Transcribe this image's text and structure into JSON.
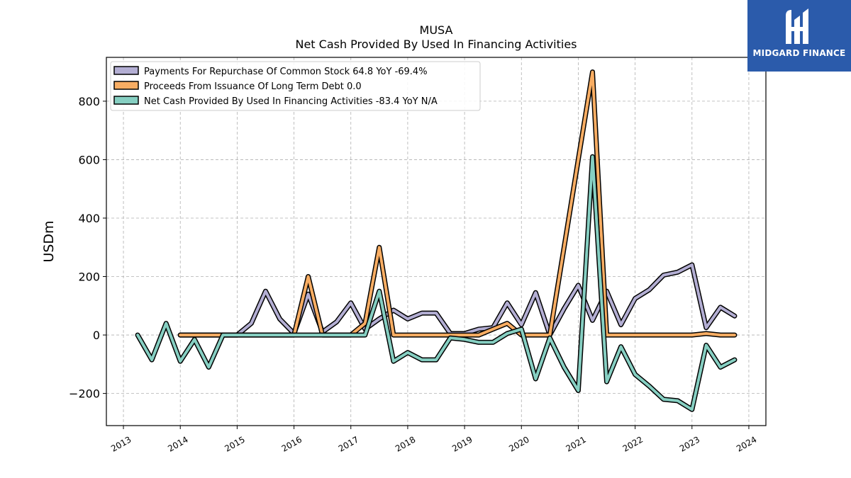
{
  "brand": {
    "name": "MIDGARD FINANCE",
    "bg_color": "#2b5bab"
  },
  "chart_data": {
    "type": "line",
    "title": "MUSA",
    "subtitle": "Net Cash Provided By Used In Financing Activities",
    "xlabel": "",
    "ylabel": "USDm",
    "xlim": [
      2012.7,
      2024.3
    ],
    "ylim": [
      -310,
      950
    ],
    "x_ticks": [
      "2013",
      "2014",
      "2015",
      "2016",
      "2017",
      "2018",
      "2019",
      "2020",
      "2021",
      "2022",
      "2023",
      "2024"
    ],
    "y_ticks": [
      -200,
      0,
      200,
      400,
      600,
      800
    ],
    "y_tick_labels": [
      "−200",
      "0",
      "200",
      "400",
      "600",
      "800"
    ],
    "grid": true,
    "legend_position": "top-left",
    "series": [
      {
        "name": "Payments For Repurchase Of Common Stock  64.8 YoY -69.4%",
        "color": "#b3aed3",
        "x": [
          2014.0,
          2014.25,
          2014.5,
          2014.75,
          2015.0,
          2015.25,
          2015.5,
          2015.75,
          2016.0,
          2016.25,
          2016.5,
          2016.75,
          2017.0,
          2017.25,
          2017.5,
          2017.75,
          2018.0,
          2018.25,
          2018.5,
          2018.75,
          2019.0,
          2019.25,
          2019.5,
          2019.75,
          2020.0,
          2020.25,
          2020.5,
          2020.75,
          2021.0,
          2021.25,
          2021.5,
          2021.75,
          2022.0,
          2022.25,
          2022.5,
          2022.75,
          2023.0,
          2023.25,
          2023.5,
          2023.75
        ],
        "values": [
          0,
          0,
          0,
          0,
          0,
          40,
          150,
          55,
          5,
          140,
          10,
          45,
          110,
          20,
          55,
          85,
          55,
          75,
          75,
          5,
          5,
          20,
          25,
          110,
          35,
          145,
          0,
          90,
          170,
          50,
          150,
          35,
          125,
          155,
          205,
          215,
          240,
          25,
          95,
          65
        ]
      },
      {
        "name": "Proceeds From Issuance Of Long Term Debt  0.0",
        "color": "#f8ad63",
        "x": [
          2014.0,
          2014.25,
          2014.5,
          2014.75,
          2015.0,
          2015.25,
          2015.5,
          2015.75,
          2016.0,
          2016.25,
          2016.5,
          2016.75,
          2017.0,
          2017.25,
          2017.5,
          2017.75,
          2018.0,
          2018.25,
          2018.5,
          2018.75,
          2019.0,
          2019.25,
          2019.5,
          2019.75,
          2020.0,
          2020.25,
          2020.5,
          2020.75,
          2021.0,
          2021.25,
          2021.5,
          2021.75,
          2022.0,
          2022.25,
          2022.5,
          2022.75,
          2023.0,
          2023.25,
          2023.5,
          2023.75
        ],
        "values": [
          0,
          0,
          0,
          0,
          0,
          0,
          0,
          0,
          0,
          200,
          0,
          0,
          0,
          40,
          300,
          0,
          0,
          0,
          0,
          0,
          0,
          0,
          20,
          40,
          0,
          0,
          0,
          300,
          600,
          900,
          0,
          0,
          0,
          0,
          0,
          0,
          0,
          5,
          0,
          0
        ]
      },
      {
        "name": "Net Cash Provided By Used In Financing Activities  -83.4 YoY N/A",
        "color": "#86cfc2",
        "x": [
          2013.25,
          2013.5,
          2013.75,
          2014.0,
          2014.25,
          2014.5,
          2014.75,
          2015.0,
          2015.25,
          2015.5,
          2015.75,
          2016.0,
          2016.25,
          2016.5,
          2016.75,
          2017.0,
          2017.25,
          2017.5,
          2017.75,
          2018.0,
          2018.25,
          2018.5,
          2018.75,
          2019.0,
          2019.25,
          2019.5,
          2019.75,
          2020.0,
          2020.25,
          2020.5,
          2020.75,
          2021.0,
          2021.25,
          2021.5,
          2021.75,
          2022.0,
          2022.25,
          2022.5,
          2022.75,
          2023.0,
          2023.25,
          2023.5,
          2023.75
        ],
        "values": [
          0,
          -85,
          40,
          -90,
          -15,
          -110,
          0,
          0,
          0,
          0,
          0,
          0,
          0,
          0,
          0,
          0,
          0,
          150,
          -90,
          -60,
          -85,
          -85,
          -10,
          -15,
          -25,
          -25,
          5,
          20,
          -150,
          -10,
          -110,
          -190,
          610,
          -160,
          -40,
          -135,
          -175,
          -220,
          -225,
          -255,
          -35,
          -110,
          -85
        ]
      }
    ]
  }
}
